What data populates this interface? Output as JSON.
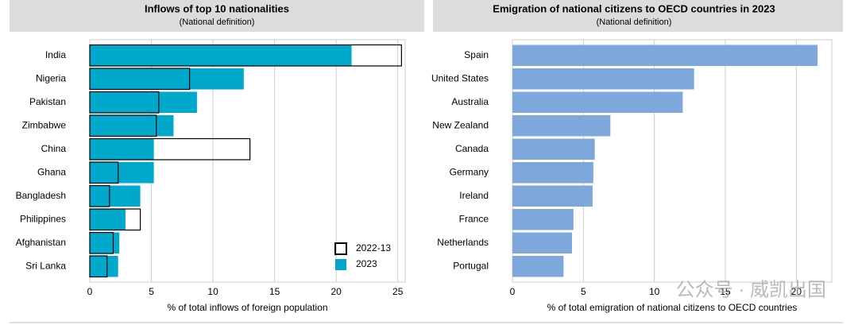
{
  "chart_data": [
    {
      "type": "bar",
      "orientation": "horizontal",
      "title": "Inflows of top 10 nationalities",
      "subtitle": "(National definition)",
      "categories": [
        "India",
        "Nigeria",
        "Pakistan",
        "Zimbabwe",
        "China",
        "Ghana",
        "Bangladesh",
        "Philippines",
        "Afghanistan",
        "Sri Lanka"
      ],
      "series": [
        {
          "name": "2022-13",
          "color": "#000000",
          "outline": true,
          "values": [
            25.3,
            8.1,
            5.6,
            5.4,
            13.0,
            2.3,
            1.6,
            4.1,
            1.9,
            1.4
          ]
        },
        {
          "name": "2023",
          "color": "#00a9cc",
          "values": [
            21.25,
            12.5,
            8.7,
            6.8,
            5.2,
            5.2,
            4.1,
            2.9,
            2.4,
            2.3
          ]
        }
      ],
      "xlabel": "% of total inflows of foreign population",
      "xlim": [
        0,
        25.6
      ],
      "xticks": [
        0,
        5,
        10,
        15,
        20,
        25
      ],
      "grid": true,
      "legend": "bottom-right"
    },
    {
      "type": "bar",
      "orientation": "horizontal",
      "title": "Emigration of national citizens to OECD countries in 2023",
      "subtitle": "(National definition)",
      "categories": [
        "Spain",
        "United States",
        "Australia",
        "New Zealand",
        "Canada",
        "Germany",
        "Ireland",
        "France",
        "Netherlands",
        "Portugal"
      ],
      "series": [
        {
          "color": "#7ea7db",
          "values": [
            21.5,
            12.8,
            12.0,
            6.9,
            5.8,
            5.7,
            5.65,
            4.3,
            4.2,
            3.6
          ]
        }
      ],
      "xlabel": "% of total emigration of national citizens to OECD countries",
      "xlim": [
        0,
        22.5
      ],
      "xticks": [
        0,
        5,
        10,
        15,
        20
      ],
      "grid": true
    }
  ],
  "watermark": "公众号 · 威凯出国"
}
